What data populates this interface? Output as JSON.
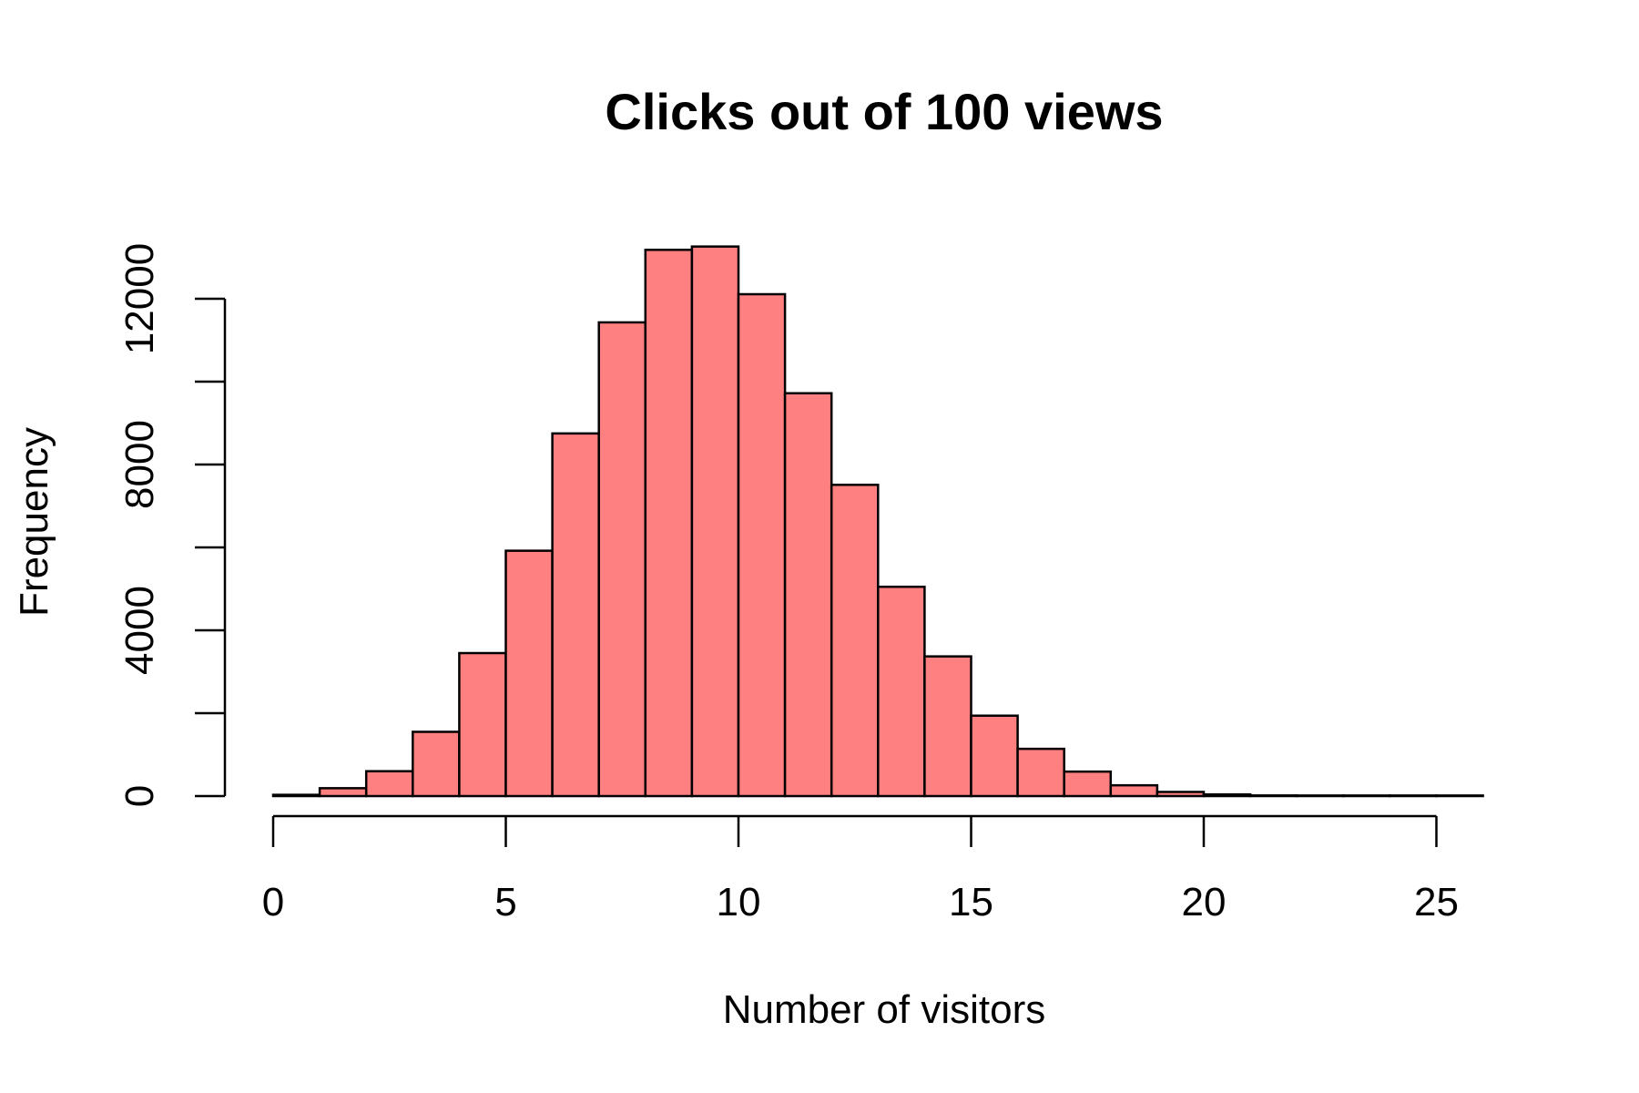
{
  "chart_data": {
    "type": "bar",
    "subtype": "histogram",
    "title": "Clicks out of 100 views",
    "xlabel": "Number of visitors",
    "ylabel": "Frequency",
    "bar_color": "#ff8080",
    "edge_color": "#000000",
    "bin_width": 1,
    "bins": [
      {
        "start": 0,
        "end": 1,
        "value": 30
      },
      {
        "start": 1,
        "end": 2,
        "value": 190
      },
      {
        "start": 2,
        "end": 3,
        "value": 600
      },
      {
        "start": 3,
        "end": 4,
        "value": 1550
      },
      {
        "start": 4,
        "end": 5,
        "value": 3450
      },
      {
        "start": 5,
        "end": 6,
        "value": 5920
      },
      {
        "start": 6,
        "end": 7,
        "value": 8750
      },
      {
        "start": 7,
        "end": 8,
        "value": 11430
      },
      {
        "start": 8,
        "end": 9,
        "value": 13180
      },
      {
        "start": 9,
        "end": 10,
        "value": 13260
      },
      {
        "start": 10,
        "end": 11,
        "value": 12110
      },
      {
        "start": 11,
        "end": 12,
        "value": 9720
      },
      {
        "start": 12,
        "end": 13,
        "value": 7510
      },
      {
        "start": 13,
        "end": 14,
        "value": 5050
      },
      {
        "start": 14,
        "end": 15,
        "value": 3370
      },
      {
        "start": 15,
        "end": 16,
        "value": 1940
      },
      {
        "start": 16,
        "end": 17,
        "value": 1140
      },
      {
        "start": 17,
        "end": 18,
        "value": 590
      },
      {
        "start": 18,
        "end": 19,
        "value": 260
      },
      {
        "start": 19,
        "end": 20,
        "value": 100
      },
      {
        "start": 20,
        "end": 21,
        "value": 40
      },
      {
        "start": 21,
        "end": 22,
        "value": 15
      },
      {
        "start": 22,
        "end": 23,
        "value": 5
      },
      {
        "start": 23,
        "end": 24,
        "value": 2
      },
      {
        "start": 24,
        "end": 25,
        "value": 1
      },
      {
        "start": 25,
        "end": 26,
        "value": 1
      }
    ],
    "xlim": [
      0,
      26
    ],
    "ylim": [
      0,
      13260
    ],
    "x_ticks": [
      0,
      5,
      10,
      15,
      20,
      25
    ],
    "x_tick_labels": [
      "0",
      "5",
      "10",
      "15",
      "20",
      "25"
    ],
    "y_ticks": [
      0,
      2000,
      4000,
      6000,
      8000,
      10000,
      12000
    ],
    "y_tick_labels": [
      "0",
      "",
      "4000",
      "",
      "8000",
      "",
      "12000"
    ],
    "grid": false,
    "legend": "none"
  }
}
